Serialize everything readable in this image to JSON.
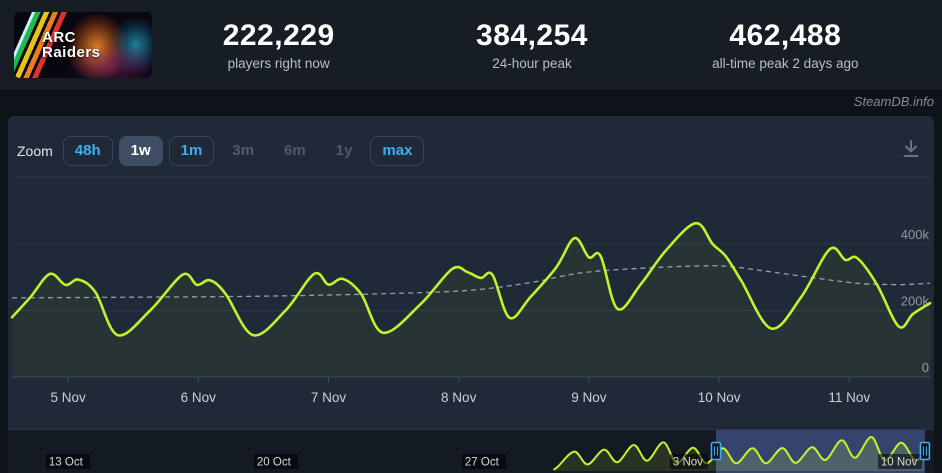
{
  "header": {
    "game_logo": {
      "line1": "ARC",
      "line2": "Raiders"
    },
    "stats": [
      {
        "value": "222,229",
        "label": "players right now"
      },
      {
        "value": "384,254",
        "label": "24-hour peak"
      },
      {
        "value": "462,488",
        "label": "all-time peak 2 days ago"
      }
    ]
  },
  "watermark": "SteamDB.info",
  "toolbar": {
    "zoom_label": "Zoom",
    "buttons": [
      {
        "label": "48h",
        "state": "enabled"
      },
      {
        "label": "1w",
        "state": "active"
      },
      {
        "label": "1m",
        "state": "enabled"
      },
      {
        "label": "3m",
        "state": "disabled"
      },
      {
        "label": "6m",
        "state": "disabled"
      },
      {
        "label": "1y",
        "state": "disabled"
      },
      {
        "label": "max",
        "state": "enabled"
      }
    ]
  },
  "colors": {
    "line": "#c2f12d",
    "line_fill": "rgba(194,241,45,0.055)",
    "nav_fill": "rgba(194,241,45,0.25)",
    "average": "#97a1aa",
    "accent_blue": "#3cb0f0",
    "grid": "#2d3846",
    "axis": "#3e4a59",
    "x_label": "#ccd1d6",
    "y_label": "#8f99a3",
    "nav_label": "#d6dade",
    "nav_week_line": "#28323f",
    "selection_overlay": "rgba(90,114,194,0.38)",
    "unselected_overlay": "rgba(7,11,17,0.5)"
  },
  "chart_data": {
    "type": "line",
    "x_unit": "day of November (fractional, UTC)",
    "x_range_days": [
      4.569,
      11.62
    ],
    "ylim": [
      0,
      600000
    ],
    "grid": true,
    "y_ticks": [
      {
        "label": "400k",
        "value": 400000
      },
      {
        "label": "200k",
        "value": 200000
      },
      {
        "label": "0",
        "value": 0
      }
    ],
    "x_labels": [
      {
        "label": "5 Nov",
        "day": 5
      },
      {
        "label": "6 Nov",
        "day": 6
      },
      {
        "label": "7 Nov",
        "day": 7
      },
      {
        "label": "8 Nov",
        "day": 8
      },
      {
        "label": "9 Nov",
        "day": 9
      },
      {
        "label": "10 Nov",
        "day": 10
      },
      {
        "label": "11 Nov",
        "day": 11
      }
    ],
    "series": [
      {
        "name": "players-online",
        "style": "solid",
        "points": [
          [
            4.57,
            180000
          ],
          [
            4.71,
            240000
          ],
          [
            4.86,
            310000
          ],
          [
            4.98,
            277000
          ],
          [
            5.08,
            293000
          ],
          [
            5.21,
            255000
          ],
          [
            5.38,
            126000
          ],
          [
            5.63,
            200000
          ],
          [
            5.88,
            308000
          ],
          [
            5.99,
            277000
          ],
          [
            6.09,
            291000
          ],
          [
            6.21,
            250000
          ],
          [
            6.42,
            126000
          ],
          [
            6.67,
            200000
          ],
          [
            6.89,
            310000
          ],
          [
            7.0,
            278000
          ],
          [
            7.11,
            295000
          ],
          [
            7.25,
            250000
          ],
          [
            7.42,
            133000
          ],
          [
            7.71,
            220000
          ],
          [
            7.95,
            325000
          ],
          [
            8.07,
            315000
          ],
          [
            8.17,
            298000
          ],
          [
            8.26,
            307000
          ],
          [
            8.39,
            178000
          ],
          [
            8.55,
            240000
          ],
          [
            8.75,
            330000
          ],
          [
            8.89,
            418000
          ],
          [
            9.0,
            360000
          ],
          [
            9.09,
            364000
          ],
          [
            9.22,
            205000
          ],
          [
            9.4,
            280000
          ],
          [
            9.59,
            380000
          ],
          [
            9.82,
            462488
          ],
          [
            9.95,
            400000
          ],
          [
            10.05,
            364000
          ],
          [
            10.17,
            290000
          ],
          [
            10.4,
            146000
          ],
          [
            10.63,
            240000
          ],
          [
            10.85,
            384254
          ],
          [
            10.97,
            352000
          ],
          [
            11.06,
            358000
          ],
          [
            11.21,
            280000
          ],
          [
            11.38,
            152000
          ],
          [
            11.49,
            190000
          ],
          [
            11.62,
            222229
          ]
        ]
      },
      {
        "name": "rolling-average",
        "style": "dashed",
        "points": [
          [
            4.57,
            238000
          ],
          [
            5.48,
            240000
          ],
          [
            6.48,
            243000
          ],
          [
            7.48,
            251000
          ],
          [
            8.09,
            261000
          ],
          [
            8.55,
            284000
          ],
          [
            8.94,
            313000
          ],
          [
            9.4,
            327000
          ],
          [
            9.86,
            334000
          ],
          [
            10.09,
            332000
          ],
          [
            10.4,
            316000
          ],
          [
            10.79,
            295000
          ],
          [
            11.09,
            281000
          ],
          [
            11.4,
            278000
          ],
          [
            11.62,
            282000
          ]
        ]
      }
    ],
    "navigator": {
      "x_unit": "days since 30 Oct (UTC)",
      "week_labels": [
        {
          "label": "13 Oct",
          "t": -17
        },
        {
          "label": "20 Oct",
          "t": -10
        },
        {
          "label": "27 Oct",
          "t": -3
        },
        {
          "label": "3 Nov",
          "t": 4
        },
        {
          "label": "10 Nov",
          "t": 11
        }
      ],
      "selection": {
        "from": 5.62,
        "to": 12.65
      },
      "points": [
        [
          0.15,
          15000
        ],
        [
          0.3,
          60000
        ],
        [
          0.85,
          264000
        ],
        [
          1.3,
          90000
        ],
        [
          1.85,
          291000
        ],
        [
          2.3,
          120000
        ],
        [
          2.85,
          354000
        ],
        [
          3.3,
          140000
        ],
        [
          3.85,
          389000
        ],
        [
          4.3,
          110000
        ],
        [
          4.85,
          317000
        ],
        [
          5.3,
          105000
        ],
        [
          5.85,
          310000
        ],
        [
          6.3,
          105000
        ],
        [
          6.85,
          309000
        ],
        [
          7.3,
          105000
        ],
        [
          7.85,
          312000
        ],
        [
          8.3,
          110000
        ],
        [
          8.85,
          324000
        ],
        [
          9.3,
          150000
        ],
        [
          9.85,
          418000
        ],
        [
          10.3,
          180000
        ],
        [
          10.85,
          462488
        ],
        [
          11.3,
          146000
        ],
        [
          11.85,
          384254
        ],
        [
          12.3,
          152000
        ],
        [
          12.62,
          222229
        ]
      ]
    }
  }
}
